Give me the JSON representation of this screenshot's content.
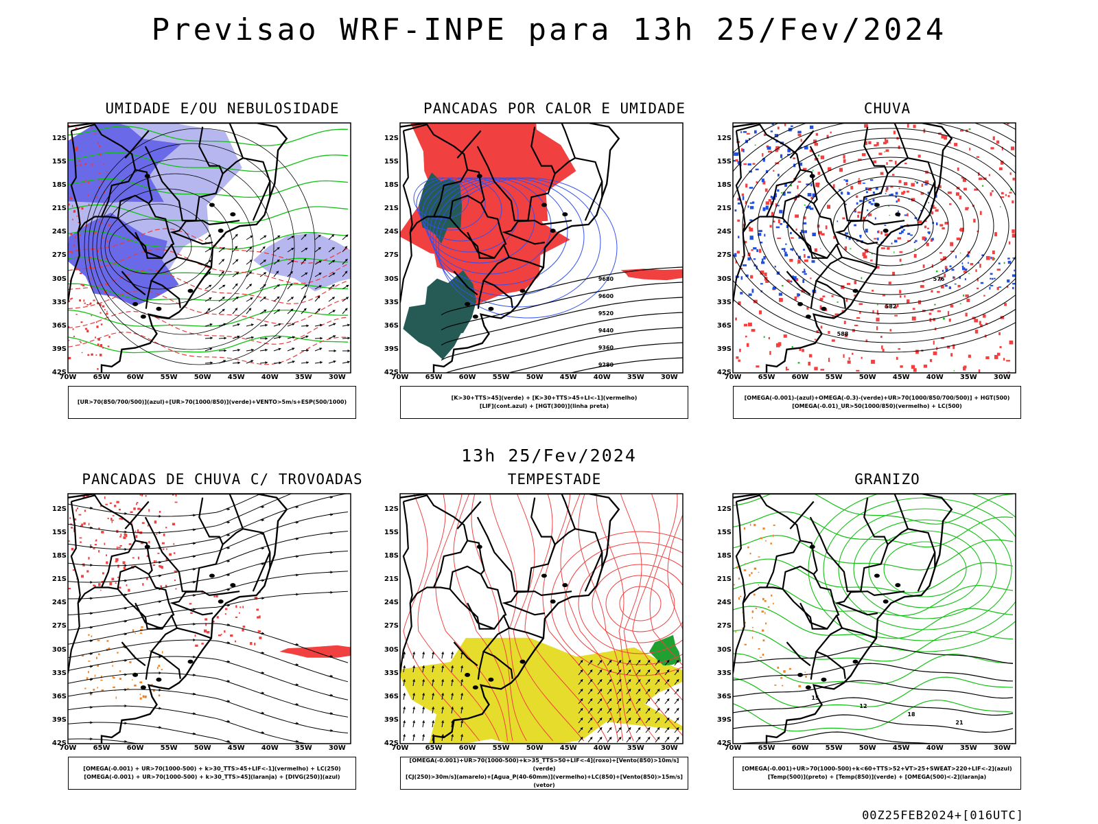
{
  "header": {
    "title": "Previsao WRF-INPE  para 13h 25/Fev/2024",
    "mid_title": "13h 25/Fev/2024",
    "stamp": "00Z25FEB2024+[016UTC]"
  },
  "axes": {
    "lat_labels": [
      "12S",
      "15S",
      "18S",
      "21S",
      "24S",
      "27S",
      "30S",
      "33S",
      "36S",
      "39S",
      "42S"
    ],
    "lon_labels": [
      "70W",
      "65W",
      "60W",
      "55W",
      "50W",
      "45W",
      "40W",
      "35W",
      "30W"
    ]
  },
  "panels": [
    {
      "title": "UMIDADE E/OU NEBULOSIDADE",
      "legend": [
        "[UR>70(850/700/500)](azul)+[UR>70(1000/850)](verde)+VENTO>5m/s+ESP(500/1000)"
      ],
      "colors": {
        "fill": "#6a6ae8",
        "fill2": "#b7b7f0",
        "contour": "#10c010",
        "dash": "#e83a3a"
      }
    },
    {
      "title": "PANCADAS POR CALOR E UMIDADE",
      "legend": [
        "[K>30+TTS>45](verde) + [K>30+TTS>45+LI<-1](vermelho)",
        "[LIF](cont.azul) + [HGT(300)](linha preta)"
      ],
      "contour_labels": [
        "9680",
        "9600",
        "9520",
        "9440",
        "9360",
        "9280"
      ],
      "colors": {
        "fill": "#f04040",
        "fill2": "#255a55",
        "contour": "#3050f0"
      }
    },
    {
      "title": "CHUVA",
      "legend": [
        "[OMEGA(-0.001)-(azul)+OMEGA(-0.3)-(verde)+UR>70(1000/850/700/500)] + HGT(500)",
        "[OMEGA(-0.01)_UR>50(1000/850)(vermelho) + LC(500)"
      ],
      "contour_labels": [
        "588",
        "582",
        "576"
      ],
      "colors": {
        "fill": "#f04040",
        "fill2": "#2050e0",
        "contour": "#10c010"
      }
    },
    {
      "title": "PANCADAS DE CHUVA C/ TROVOADAS",
      "legend": [
        "[OMEGA(-0.001) + UR>70(1000-500) + k>30_TTS>45+LIF<-1](vermelho) + LC(250)",
        "[OMEGA(-0.001) + UR>70(1000-500) + k>30_TTS>45](laranja) + [DIVG(250)](azul)"
      ],
      "colors": {
        "fill": "#f04040",
        "fill2": "#f08020",
        "contour": "#2040e0"
      }
    },
    {
      "title": "TEMPESTADE",
      "legend": [
        "[OMEGA(-0.001)+UR>70(1000-500)+k>35_TTS>50+LIF<-4](roxo)+[Vento(850)>10m/s](verde)",
        "[CJ(250)>30m/s](amarelo)+[Agua_P(40-60mm)](vermelho)+LC(850)+[Vento(850)>15m/s](vetor)"
      ],
      "colors": {
        "fill": "#e6dc2c",
        "fill2": "#20a030",
        "contour": "#f04040"
      }
    },
    {
      "title": "GRANIZO",
      "legend": [
        "[OMEGA(-0.001)+UR>70(1000-500)+k<60+TTS>52+VT>25+SWEAT>220+LIF<-2](azul)",
        "[Temp(500)](preto) + [Temp(850)](verde) + [OMEGA(500)<-2](laranja)"
      ],
      "contour_labels": [
        "15",
        "12",
        "18",
        "21"
      ],
      "colors": {
        "fill": "#f08020",
        "fill2": "#10c010",
        "contour": "#10c010"
      }
    }
  ]
}
